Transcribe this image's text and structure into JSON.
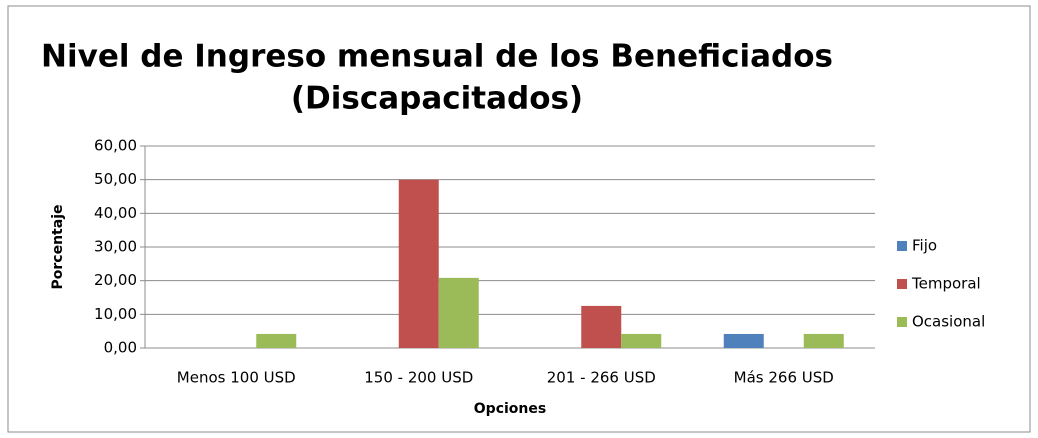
{
  "chart_data": {
    "type": "bar",
    "title": [
      "Nivel de Ingreso mensual de los Beneficiados",
      "(Discapacitados)"
    ],
    "x_label": "Opciones",
    "y_label": "Porcentaje",
    "categories": [
      "Menos 100 USD",
      "150 - 200 USD",
      "201 - 266 USD",
      "Más 266 USD"
    ],
    "series": [
      {
        "name": "Fijo",
        "color": "#4f81bd",
        "values": [
          0,
          0,
          0,
          4.17
        ]
      },
      {
        "name": "Temporal",
        "color": "#c0504d",
        "values": [
          0,
          50,
          12.5,
          0
        ]
      },
      {
        "name": "Ocasional",
        "color": "#9bbb59",
        "values": [
          4.17,
          20.83,
          4.17,
          4.17
        ]
      }
    ],
    "ylim": [
      0,
      60
    ],
    "yticks": [
      {
        "value": 0,
        "label": "0,00"
      },
      {
        "value": 10,
        "label": "10,00"
      },
      {
        "value": 20,
        "label": "20,00"
      },
      {
        "value": 30,
        "label": "30,00"
      },
      {
        "value": 40,
        "label": "40,00"
      },
      {
        "value": 50,
        "label": "50,00"
      },
      {
        "value": 60,
        "label": "60,00"
      }
    ],
    "grid": true,
    "legend": "right"
  }
}
